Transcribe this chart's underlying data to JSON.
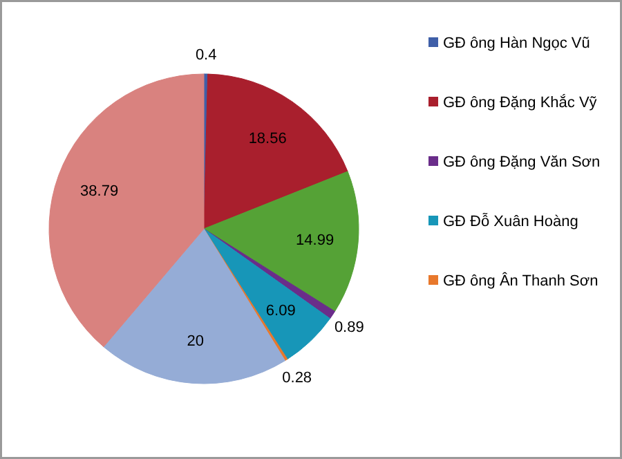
{
  "chart_data": {
    "type": "pie",
    "categories": [
      "GĐ ông Hàn Ngọc Vũ",
      "GĐ ông Đặng Khắc Vỹ",
      null,
      "GĐ ông Đặng Văn Sơn",
      "GĐ Đỗ Xuân Hoàng",
      "GĐ ông Ân Thanh Sơn",
      null,
      null
    ],
    "values": [
      0.4,
      18.56,
      14.99,
      0.89,
      6.09,
      0.28,
      20,
      38.79
    ],
    "colors": [
      "#3f5fa8",
      "#a91f2d",
      "#55a236",
      "#6a2d8a",
      "#1796b8",
      "#e8782c",
      "#95acd6",
      "#d9827f"
    ],
    "data_labels": true,
    "legend": "right"
  }
}
